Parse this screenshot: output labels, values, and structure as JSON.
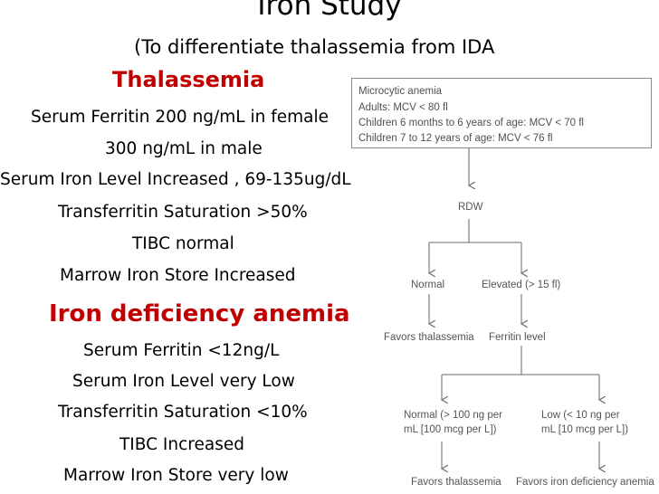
{
  "slide": {
    "title": "Iron Study",
    "subtitle": "(To differentiate thalassemia from IDA",
    "thalassemia": {
      "heading": "Thalassemia",
      "lines": [
        "Serum Ferritin 200 ng/mL in female",
        "300 ng/mL in male",
        "Serum Iron Level Increased , 69-135ug/dL",
        "Transferritin Saturation >50%",
        "TIBC normal",
        "Marrow Iron Store Increased"
      ]
    },
    "ida": {
      "heading": "Iron deficiency anemia",
      "lines": [
        "Serum Ferritin <12ng/L",
        "Serum Iron Level very Low",
        "Transferritin Saturation <10%",
        "TIBC Increased",
        "Marrow Iron Store very low"
      ]
    }
  },
  "flowchart": {
    "box": {
      "title": "Microcytic anemia",
      "adults": "Adults: MCV < 80 fl",
      "children_young": "Children 6 months to 6 years of age: MCV < 70 fl",
      "children_older": "Children 7 to 12 years of age: MCV < 76 fl"
    },
    "rdw": "RDW",
    "normal": "Normal",
    "elevated": "Elevated (> 15 fl)",
    "favors_thal_1": "Favors thalassemia",
    "ferritin_level": "Ferritin level",
    "normal_ferritin_1": "Normal (> 100 ng per",
    "normal_ferritin_2": "mL [100 mcg per L])",
    "low_ferritin_1": "Low (< 10 ng per",
    "low_ferritin_2": "mL [10 mcg per L])",
    "favors_thal_2": "Favors thalassemia",
    "favors_ida": "Favors iron deficiency anemia"
  }
}
